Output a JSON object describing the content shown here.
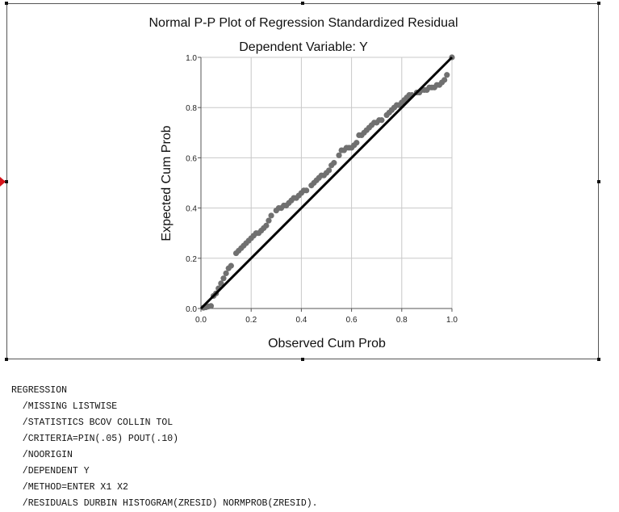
{
  "chart_data": {
    "type": "scatter",
    "title": "Normal P-P Plot of Regression Standardized Residual",
    "subtitle": "Dependent Variable: Y",
    "xlabel": "Observed Cum Prob",
    "ylabel": "Expected Cum Prob",
    "xlim": [
      0,
      1
    ],
    "ylim": [
      0,
      1
    ],
    "xticks": [
      "0.0",
      "0.2",
      "0.4",
      "0.6",
      "0.8",
      "1.0"
    ],
    "yticks": [
      "0.0",
      "0.2",
      "0.4",
      "0.6",
      "0.8",
      "1.0"
    ],
    "grid": true,
    "reference_line": [
      [
        0,
        0
      ],
      [
        1,
        1
      ]
    ],
    "points": [
      [
        0.01,
        0.003
      ],
      [
        0.02,
        0.005
      ],
      [
        0.03,
        0.008
      ],
      [
        0.04,
        0.01
      ],
      [
        0.05,
        0.05
      ],
      [
        0.06,
        0.06
      ],
      [
        0.07,
        0.08
      ],
      [
        0.08,
        0.1
      ],
      [
        0.09,
        0.12
      ],
      [
        0.1,
        0.14
      ],
      [
        0.11,
        0.16
      ],
      [
        0.12,
        0.17
      ],
      [
        0.14,
        0.22
      ],
      [
        0.15,
        0.23
      ],
      [
        0.16,
        0.24
      ],
      [
        0.17,
        0.25
      ],
      [
        0.18,
        0.26
      ],
      [
        0.19,
        0.27
      ],
      [
        0.2,
        0.28
      ],
      [
        0.21,
        0.29
      ],
      [
        0.22,
        0.3
      ],
      [
        0.23,
        0.3
      ],
      [
        0.24,
        0.31
      ],
      [
        0.25,
        0.32
      ],
      [
        0.26,
        0.33
      ],
      [
        0.27,
        0.35
      ],
      [
        0.28,
        0.37
      ],
      [
        0.3,
        0.39
      ],
      [
        0.31,
        0.4
      ],
      [
        0.32,
        0.4
      ],
      [
        0.33,
        0.41
      ],
      [
        0.34,
        0.41
      ],
      [
        0.35,
        0.42
      ],
      [
        0.36,
        0.43
      ],
      [
        0.37,
        0.44
      ],
      [
        0.38,
        0.44
      ],
      [
        0.39,
        0.45
      ],
      [
        0.4,
        0.46
      ],
      [
        0.41,
        0.47
      ],
      [
        0.42,
        0.47
      ],
      [
        0.44,
        0.49
      ],
      [
        0.45,
        0.5
      ],
      [
        0.46,
        0.51
      ],
      [
        0.47,
        0.52
      ],
      [
        0.48,
        0.53
      ],
      [
        0.49,
        0.53
      ],
      [
        0.5,
        0.54
      ],
      [
        0.51,
        0.55
      ],
      [
        0.52,
        0.57
      ],
      [
        0.53,
        0.58
      ],
      [
        0.55,
        0.61
      ],
      [
        0.56,
        0.63
      ],
      [
        0.57,
        0.63
      ],
      [
        0.58,
        0.64
      ],
      [
        0.59,
        0.64
      ],
      [
        0.6,
        0.64
      ],
      [
        0.61,
        0.65
      ],
      [
        0.62,
        0.66
      ],
      [
        0.63,
        0.69
      ],
      [
        0.64,
        0.69
      ],
      [
        0.65,
        0.7
      ],
      [
        0.66,
        0.71
      ],
      [
        0.67,
        0.72
      ],
      [
        0.68,
        0.73
      ],
      [
        0.69,
        0.74
      ],
      [
        0.7,
        0.74
      ],
      [
        0.71,
        0.75
      ],
      [
        0.72,
        0.75
      ],
      [
        0.74,
        0.77
      ],
      [
        0.75,
        0.78
      ],
      [
        0.76,
        0.79
      ],
      [
        0.77,
        0.8
      ],
      [
        0.78,
        0.81
      ],
      [
        0.79,
        0.81
      ],
      [
        0.8,
        0.82
      ],
      [
        0.81,
        0.83
      ],
      [
        0.82,
        0.84
      ],
      [
        0.83,
        0.85
      ],
      [
        0.84,
        0.85
      ],
      [
        0.86,
        0.86
      ],
      [
        0.87,
        0.86
      ],
      [
        0.88,
        0.87
      ],
      [
        0.89,
        0.87
      ],
      [
        0.9,
        0.87
      ],
      [
        0.91,
        0.88
      ],
      [
        0.92,
        0.88
      ],
      [
        0.93,
        0.88
      ],
      [
        0.94,
        0.89
      ],
      [
        0.95,
        0.89
      ],
      [
        0.96,
        0.9
      ],
      [
        0.97,
        0.91
      ],
      [
        0.98,
        0.93
      ],
      [
        1.0,
        1.0
      ]
    ],
    "point_color": "#707070",
    "line_color": "#000000",
    "grid_color": "#c8c8c8"
  },
  "syntax": [
    "REGRESSION",
    "  /MISSING LISTWISE",
    "  /STATISTICS BCOV COLLIN TOL",
    "  /CRITERIA=PIN(.05) POUT(.10)",
    "  /NOORIGIN",
    "  /DEPENDENT Y",
    "  /METHOD=ENTER X1 X2",
    "  /RESIDUALS DURBIN HISTOGRAM(ZRESID) NORMPROB(ZRESID)."
  ]
}
